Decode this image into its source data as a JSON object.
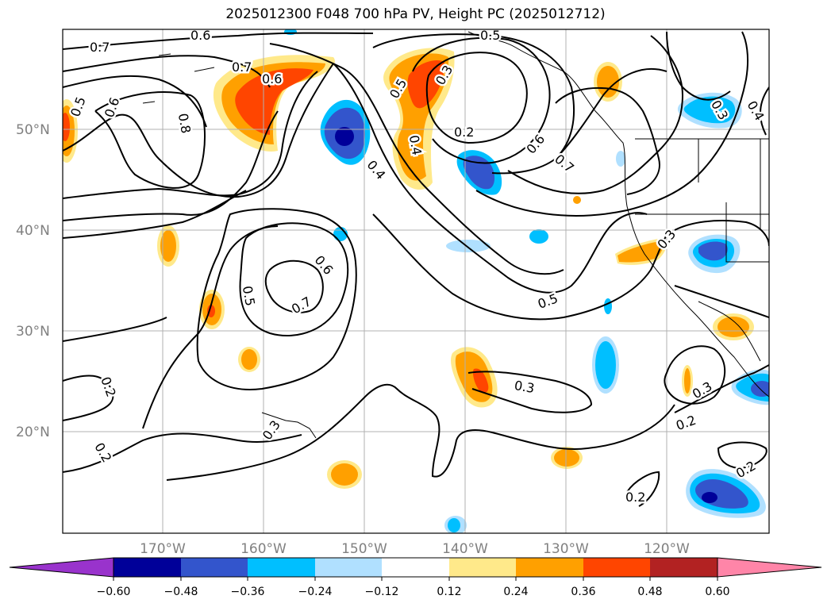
{
  "title": "2025012300 F048 700 hPa PV, Height PC (2025012712)",
  "lat_labels": [
    "50°N",
    "40°N",
    "30°N",
    "20°N"
  ],
  "lon_labels": [
    "170°W",
    "160°W",
    "150°W",
    "140°W",
    "130°W",
    "120°W"
  ],
  "contour_labels": [
    "0.7",
    "0.6",
    "0.5",
    "0.6",
    "0.7",
    "0.6",
    "0.8",
    "0.5",
    "0.3",
    "0.5",
    "0.4",
    "0.4",
    "0.2",
    "0.6",
    "0.7",
    "0.3",
    "0.4",
    "0.6",
    "0.5",
    "0.7",
    "0.5",
    "0.3",
    "0.2",
    "0.2",
    "0.3",
    "0.3",
    "0.2",
    "0.3",
    "0.2",
    "0.2"
  ],
  "colorbar": {
    "ticks": [
      "−0.60",
      "−0.48",
      "−0.36",
      "−0.24",
      "−0.12",
      "0.12",
      "0.24",
      "0.36",
      "0.48",
      "0.60"
    ],
    "colors": [
      "#9933cc",
      "#000099",
      "#3355cc",
      "#00bfff",
      "#b0e0ff",
      "#ffffff",
      "#ffe98a",
      "#ffa000",
      "#ff4500",
      "#b22222",
      "#ff85a8"
    ]
  }
}
